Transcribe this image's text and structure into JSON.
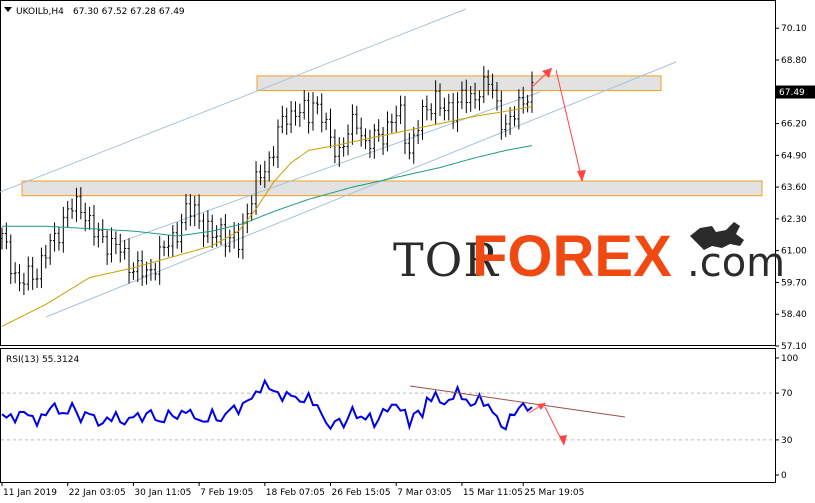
{
  "header": {
    "symbol": "UKOILb,H4",
    "ohlc": "67.30 67.52 67.28 67.49"
  },
  "logo": {
    "part1": "TOR",
    "part2": "FOREX",
    "part3": ".com"
  },
  "colors": {
    "candles": "#000000",
    "ma_short": "#c8a000",
    "ma_long": "#1f9a82",
    "channel": "#a9c2d8",
    "zone_fill": "#e2e2e2",
    "zone_border": "#f0a020",
    "forecast_arrow": "#ff4545",
    "rsi_line": "#0000e6",
    "rsi_trend": "#9b4d4d",
    "price_badge": "#000000",
    "logo_orange": "#f04a12"
  },
  "chart_data": {
    "type": "candlestick",
    "symbol": "UKOILb",
    "timeframe": "H4",
    "last_price": "67.49",
    "ylim": [
      57.1,
      70.6
    ],
    "y_ticks": [
      "70.10",
      "68.80",
      "67.49",
      "66.20",
      "64.90",
      "63.60",
      "62.30",
      "61.00",
      "59.70",
      "58.40",
      "57.10"
    ],
    "x_ticks": [
      "11 Jan 2019",
      "22 Jan 03:05",
      "30 Jan 11:05",
      "7 Feb 19:05",
      "18 Feb 07:05",
      "26 Feb 15:05",
      "7 Mar 03:05",
      "15 Mar 11:05",
      "25 Mar 19:05"
    ],
    "close_path": [
      [
        0,
        61.5
      ],
      [
        4,
        59.6
      ],
      [
        8,
        60.2
      ],
      [
        12,
        61.5
      ],
      [
        15,
        62.6
      ],
      [
        18,
        62.9
      ],
      [
        21,
        61.7
      ],
      [
        24,
        61.4
      ],
      [
        27,
        61.0
      ],
      [
        30,
        60.3
      ],
      [
        33,
        60.0
      ],
      [
        36,
        60.8
      ],
      [
        39,
        61.5
      ],
      [
        42,
        62.5
      ],
      [
        44,
        62.7
      ],
      [
        46,
        62.0
      ],
      [
        48,
        61.5
      ],
      [
        50,
        61.9
      ],
      [
        52,
        61.4
      ],
      [
        54,
        61.3
      ],
      [
        56,
        62.7
      ],
      [
        58,
        63.7
      ],
      [
        61,
        64.7
      ],
      [
        63,
        65.8
      ],
      [
        65,
        66.5
      ],
      [
        68,
        66.8
      ],
      [
        70,
        66.4
      ],
      [
        71,
        67.2
      ],
      [
        73,
        66.6
      ],
      [
        75,
        65.4
      ],
      [
        77,
        65.1
      ],
      [
        79,
        65.8
      ],
      [
        81,
        66.3
      ],
      [
        83,
        65.4
      ],
      [
        85,
        65.5
      ],
      [
        87,
        65.8
      ],
      [
        89,
        66.4
      ],
      [
        91,
        66.5
      ],
      [
        93,
        65.1
      ],
      [
        95,
        66.1
      ],
      [
        97,
        66.8
      ],
      [
        99,
        67.3
      ],
      [
        101,
        66.6
      ],
      [
        103,
        66.8
      ],
      [
        105,
        67.4
      ],
      [
        107,
        67.0
      ],
      [
        109,
        67.7
      ],
      [
        111,
        67.9
      ],
      [
        113,
        66.9
      ],
      [
        115,
        66.1
      ],
      [
        117,
        66.5
      ],
      [
        119,
        67.3
      ],
      [
        121,
        67.5
      ]
    ],
    "ma_short": [
      [
        0,
        57.9
      ],
      [
        10,
        58.8
      ],
      [
        20,
        59.9
      ],
      [
        30,
        60.3
      ],
      [
        40,
        60.8
      ],
      [
        48,
        61.2
      ],
      [
        54,
        61.8
      ],
      [
        58,
        62.7
      ],
      [
        62,
        63.8
      ],
      [
        66,
        64.6
      ],
      [
        70,
        65.1
      ],
      [
        76,
        65.3
      ],
      [
        84,
        65.6
      ],
      [
        92,
        65.9
      ],
      [
        100,
        66.2
      ],
      [
        108,
        66.5
      ],
      [
        115,
        66.7
      ],
      [
        121,
        66.9
      ]
    ],
    "ma_long": [
      [
        0,
        62.0
      ],
      [
        10,
        62.0
      ],
      [
        20,
        61.9
      ],
      [
        30,
        61.8
      ],
      [
        40,
        61.6
      ],
      [
        48,
        61.8
      ],
      [
        55,
        62.1
      ],
      [
        62,
        62.6
      ],
      [
        70,
        63.1
      ],
      [
        80,
        63.6
      ],
      [
        90,
        64.0
      ],
      [
        100,
        64.4
      ],
      [
        108,
        64.8
      ],
      [
        115,
        65.1
      ],
      [
        121,
        65.3
      ]
    ],
    "resistance_zone": [
      67.55,
      68.15
    ],
    "support_zone": [
      63.25,
      63.85
    ],
    "rsi": {
      "label": "RSI(13) 55.3124",
      "period": 13,
      "value": 55.3124,
      "ylim": [
        0,
        100
      ],
      "y_ticks": [
        "100",
        "70",
        "30",
        "0"
      ],
      "levels": [
        30,
        70
      ],
      "path": [
        [
          0,
          52
        ],
        [
          3,
          48
        ],
        [
          5,
          55
        ],
        [
          8,
          45
        ],
        [
          10,
          53
        ],
        [
          12,
          60
        ],
        [
          14,
          50
        ],
        [
          16,
          60
        ],
        [
          18,
          47
        ],
        [
          20,
          55
        ],
        [
          22,
          43
        ],
        [
          24,
          47
        ],
        [
          26,
          51
        ],
        [
          28,
          43
        ],
        [
          30,
          52
        ],
        [
          32,
          48
        ],
        [
          34,
          55
        ],
        [
          36,
          43
        ],
        [
          38,
          53
        ],
        [
          40,
          49
        ],
        [
          42,
          56
        ],
        [
          44,
          50
        ],
        [
          46,
          44
        ],
        [
          48,
          53
        ],
        [
          50,
          45
        ],
        [
          52,
          58
        ],
        [
          54,
          55
        ],
        [
          56,
          64
        ],
        [
          58,
          69
        ],
        [
          60,
          78
        ],
        [
          62,
          72
        ],
        [
          64,
          66
        ],
        [
          66,
          70
        ],
        [
          68,
          62
        ],
        [
          70,
          67
        ],
        [
          72,
          58
        ],
        [
          74,
          46
        ],
        [
          75,
          37
        ],
        [
          76,
          49
        ],
        [
          78,
          42
        ],
        [
          80,
          56
        ],
        [
          82,
          47
        ],
        [
          84,
          52
        ],
        [
          85,
          40
        ],
        [
          86,
          50
        ],
        [
          88,
          57
        ],
        [
          90,
          60
        ],
        [
          92,
          53
        ],
        [
          93,
          44
        ],
        [
          95,
          56
        ],
        [
          96,
          50
        ],
        [
          97,
          64
        ],
        [
          99,
          68
        ],
        [
          101,
          60
        ],
        [
          102,
          63
        ],
        [
          104,
          72
        ],
        [
          106,
          63
        ],
        [
          107,
          59
        ],
        [
          109,
          66
        ],
        [
          111,
          58
        ],
        [
          113,
          51
        ],
        [
          114,
          39
        ],
        [
          115,
          42
        ],
        [
          116,
          49
        ],
        [
          118,
          57
        ],
        [
          119,
          60
        ],
        [
          121,
          55
        ]
      ]
    }
  }
}
